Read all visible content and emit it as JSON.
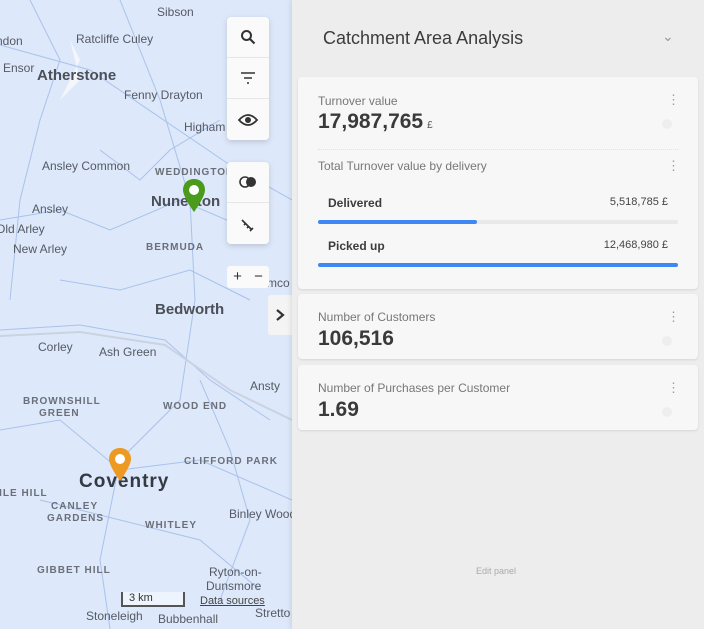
{
  "map": {
    "labels": {
      "sibson": "Sibson",
      "ratcliffe": "Ratcliffe Culey",
      "ensor": "Ensor",
      "atherstone": "Atherstone",
      "fenny": "Fenny Drayton",
      "higham": "Higham",
      "ansley_common": "Ansley Common",
      "weddington": "WEDDINGTON",
      "nuneaton": "Nuneaton",
      "ansley": "Ansley",
      "old_arley": "Old Arley",
      "new_arley": "New Arley",
      "bermuda": "BERMUDA",
      "bedworth": "Bedworth",
      "corley": "Corley",
      "ash_green": "Ash Green",
      "ansty": "Ansty",
      "brownshill": "BROWNSHILL",
      "green": "GREEN",
      "wood_end": "WOOD END",
      "clifford": "CLIFFORD PARK",
      "coventry": "Coventry",
      "tile_hill": "TILE HILL",
      "canley": "CANLEY",
      "gardens": "GARDENS",
      "whitley": "WHITLEY",
      "binley": "Binley Woods",
      "gibbet": "GIBBET HILL",
      "ryton": "Ryton-on-",
      "dunsmore": "Dunsmore",
      "stoneleigh": "Stoneleigh",
      "bubbenhall": "Bubbenhall",
      "stretton": "Stretto",
      "ndon": "ndon",
      "imco": "mco"
    },
    "scale": "3 km",
    "data_sources": "Data sources",
    "zoom_in": "+",
    "zoom_out": "−",
    "pin_colors": {
      "green": "#4a9a1c",
      "orange": "#ee9a22"
    }
  },
  "panel": {
    "title": "Catchment Area Analysis",
    "turnover": {
      "label": "Turnover value",
      "value": "17,987,765",
      "unit": "£"
    },
    "by_delivery": {
      "label": "Total Turnover value by delivery",
      "rows": [
        {
          "name": "Delivered",
          "value": "5,518,785 £",
          "fraction": 0.443
        },
        {
          "name": "Picked up",
          "value": "12,468,980 £",
          "fraction": 1.0
        }
      ]
    },
    "customers": {
      "label": "Number of Customers",
      "value": "106,516"
    },
    "purchases": {
      "label": "Number of Purchases per Customer",
      "value": "1.69"
    },
    "edit": "Edit panel"
  },
  "accent": "#3f87f5"
}
